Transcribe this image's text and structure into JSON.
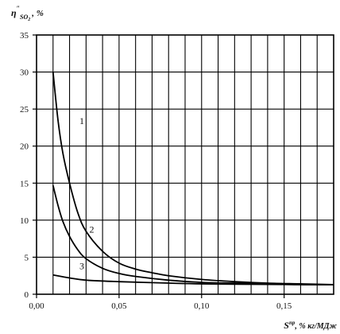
{
  "chart_data": {
    "type": "line",
    "ylabel": "η″SO₂ , %",
    "ylabel_parts": {
      "symbol": "η",
      "prime": "″",
      "subscript": "SO",
      "subscript_digit": "2",
      "unit": ", %"
    },
    "xlabel": "Sпр, % кг/МДж",
    "xlabel_parts": {
      "base": "S",
      "sup": "пр",
      "unit": ", % кг/МДж"
    },
    "xlim": [
      0,
      0.18
    ],
    "ylim": [
      0,
      35
    ],
    "x_ticks": [
      {
        "value": 0,
        "label": "0,00"
      },
      {
        "value": 0.05,
        "label": "0,05"
      },
      {
        "value": 0.1,
        "label": "0,10"
      },
      {
        "value": 0.15,
        "label": "0,15"
      }
    ],
    "y_ticks": [
      {
        "value": 0,
        "label": "0"
      },
      {
        "value": 5,
        "label": "5"
      },
      {
        "value": 10,
        "label": "10"
      },
      {
        "value": 15,
        "label": "15"
      },
      {
        "value": 20,
        "label": "20"
      },
      {
        "value": 25,
        "label": "25"
      },
      {
        "value": 30,
        "label": "30"
      },
      {
        "value": 35,
        "label": "35"
      }
    ],
    "grid": true,
    "grid_x_step": 0.01,
    "grid_y_step": 5,
    "series": [
      {
        "label": "1",
        "label_at": [
          0.026,
          23
        ],
        "x": [
          0.01,
          0.013,
          0.016,
          0.02,
          0.025,
          0.03,
          0.04,
          0.05,
          0.06,
          0.07,
          0.08,
          0.1,
          0.12,
          0.14,
          0.16,
          0.18
        ],
        "y": [
          30.0,
          23.5,
          19.0,
          15.0,
          11.0,
          8.5,
          5.8,
          4.2,
          3.4,
          2.9,
          2.5,
          2.0,
          1.7,
          1.5,
          1.4,
          1.3
        ]
      },
      {
        "label": "2",
        "label_at": [
          0.032,
          8.3
        ],
        "x": [
          0.01,
          0.013,
          0.016,
          0.02,
          0.025,
          0.03,
          0.04,
          0.05,
          0.06,
          0.08,
          0.1,
          0.12,
          0.14,
          0.16,
          0.18
        ],
        "y": [
          14.7,
          12.0,
          9.8,
          7.8,
          6.0,
          4.8,
          3.5,
          2.8,
          2.4,
          1.9,
          1.6,
          1.5,
          1.4,
          1.3,
          1.3
        ]
      },
      {
        "label": "3",
        "label_at": [
          0.026,
          3.4
        ],
        "x": [
          0.01,
          0.02,
          0.03,
          0.05,
          0.08,
          0.1,
          0.13,
          0.16,
          0.18
        ],
        "y": [
          2.6,
          2.2,
          1.9,
          1.7,
          1.5,
          1.4,
          1.35,
          1.3,
          1.3
        ]
      }
    ]
  }
}
